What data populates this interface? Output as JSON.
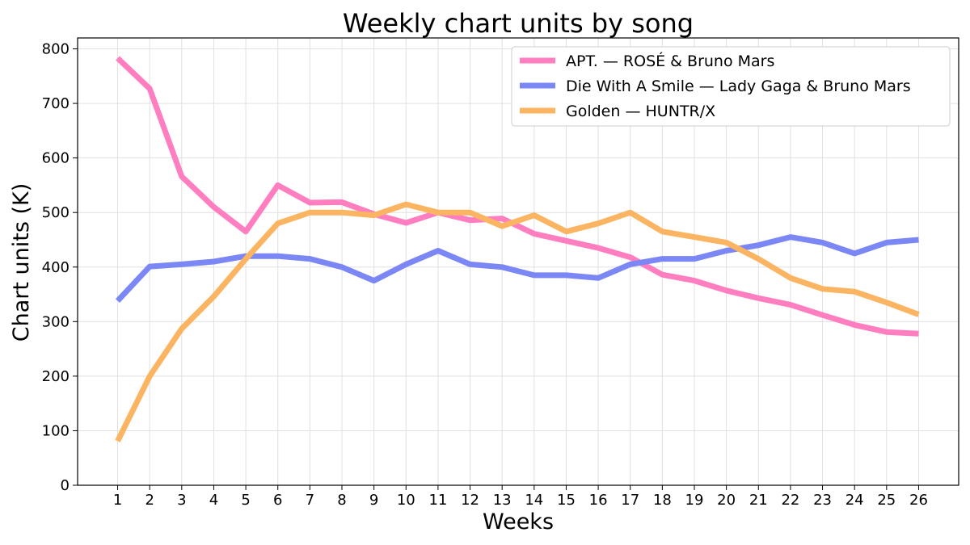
{
  "chart_data": {
    "type": "line",
    "title": "Weekly chart units by song",
    "xlabel": "Weeks",
    "ylabel": "Chart units (K)",
    "x": [
      1,
      2,
      3,
      4,
      5,
      6,
      7,
      8,
      9,
      10,
      11,
      12,
      13,
      14,
      15,
      16,
      17,
      18,
      19,
      20,
      21,
      22,
      23,
      24,
      25,
      26
    ],
    "xlim": [
      -0.25,
      27.25
    ],
    "ylim": [
      0,
      820
    ],
    "yticks": [
      0,
      100,
      200,
      300,
      400,
      500,
      600,
      700,
      800
    ],
    "grid": true,
    "legend_position": "top-right",
    "series": [
      {
        "name": "APT. — ROSÉ & Bruno Mars",
        "color": "#ff7ec0",
        "values": [
          783,
          727,
          566,
          510,
          465,
          550,
          518,
          519,
          497,
          481,
          500,
          486,
          489,
          461,
          448,
          435,
          418,
          386,
          375,
          357,
          343,
          331,
          312,
          294,
          281,
          278
        ]
      },
      {
        "name": "Die With A Smile — Lady Gaga & Bruno Mars",
        "color": "#7b87f5",
        "values": [
          338,
          401,
          405,
          410,
          420,
          420,
          415,
          400,
          375,
          405,
          430,
          405,
          400,
          385,
          385,
          380,
          405,
          415,
          415,
          430,
          440,
          455,
          445,
          425,
          445,
          450
        ]
      },
      {
        "name": "Golden — HUNTR/X",
        "color": "#fbb461",
        "values": [
          81,
          200,
          287,
          346,
          415,
          480,
          500,
          500,
          495,
          515,
          500,
          500,
          475,
          495,
          465,
          480,
          500,
          465,
          455,
          445,
          415,
          380,
          360,
          355,
          335,
          313
        ]
      }
    ]
  }
}
